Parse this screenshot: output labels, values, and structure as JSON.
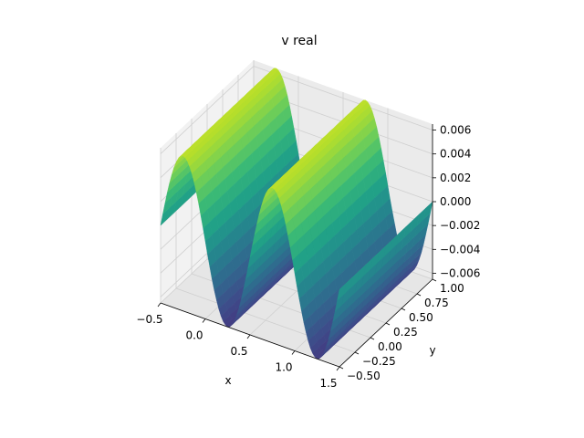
{
  "chart_data": {
    "type": "surface3d",
    "title": "v real",
    "xlabel": "x",
    "ylabel": "y",
    "zlabel": "",
    "xlim": [
      -0.5,
      1.5
    ],
    "ylim": [
      -0.5,
      1.0
    ],
    "zlim": [
      -0.0065,
      0.0065
    ],
    "surface_x_range": [
      -0.5,
      1.5
    ],
    "surface_y_range": [
      -0.5,
      1.0
    ],
    "amplitude": 0.0065,
    "wave_period_x": 1.0,
    "x_ticks": [
      "−0.5",
      "0.0",
      "0.5",
      "1.0",
      "1.5"
    ],
    "y_ticks": [
      "−0.50",
      "−0.25",
      "0.00",
      "0.25",
      "0.50",
      "0.75",
      "1.00"
    ],
    "z_ticks": [
      "−0.006",
      "−0.004",
      "−0.002",
      "0.000",
      "0.002",
      "0.004",
      "0.006"
    ],
    "colormap": "viridis",
    "grid": true,
    "pane_color": "#f2f2f2"
  }
}
